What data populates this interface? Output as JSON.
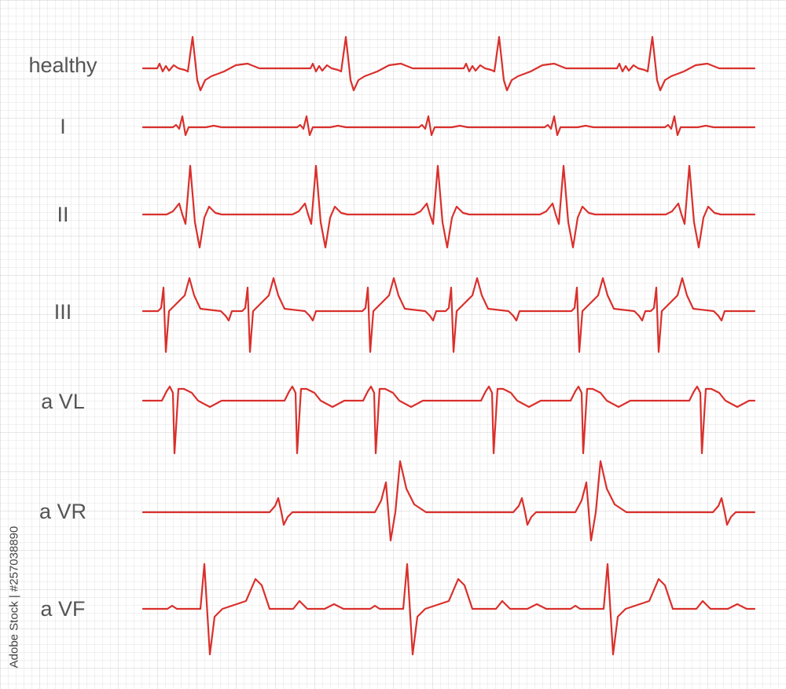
{
  "leads": [
    "healthy",
    "I",
    "II",
    "III",
    "a VL",
    "a VR",
    "a VF"
  ],
  "watermark": "Adobe Stock | #257038890"
}
